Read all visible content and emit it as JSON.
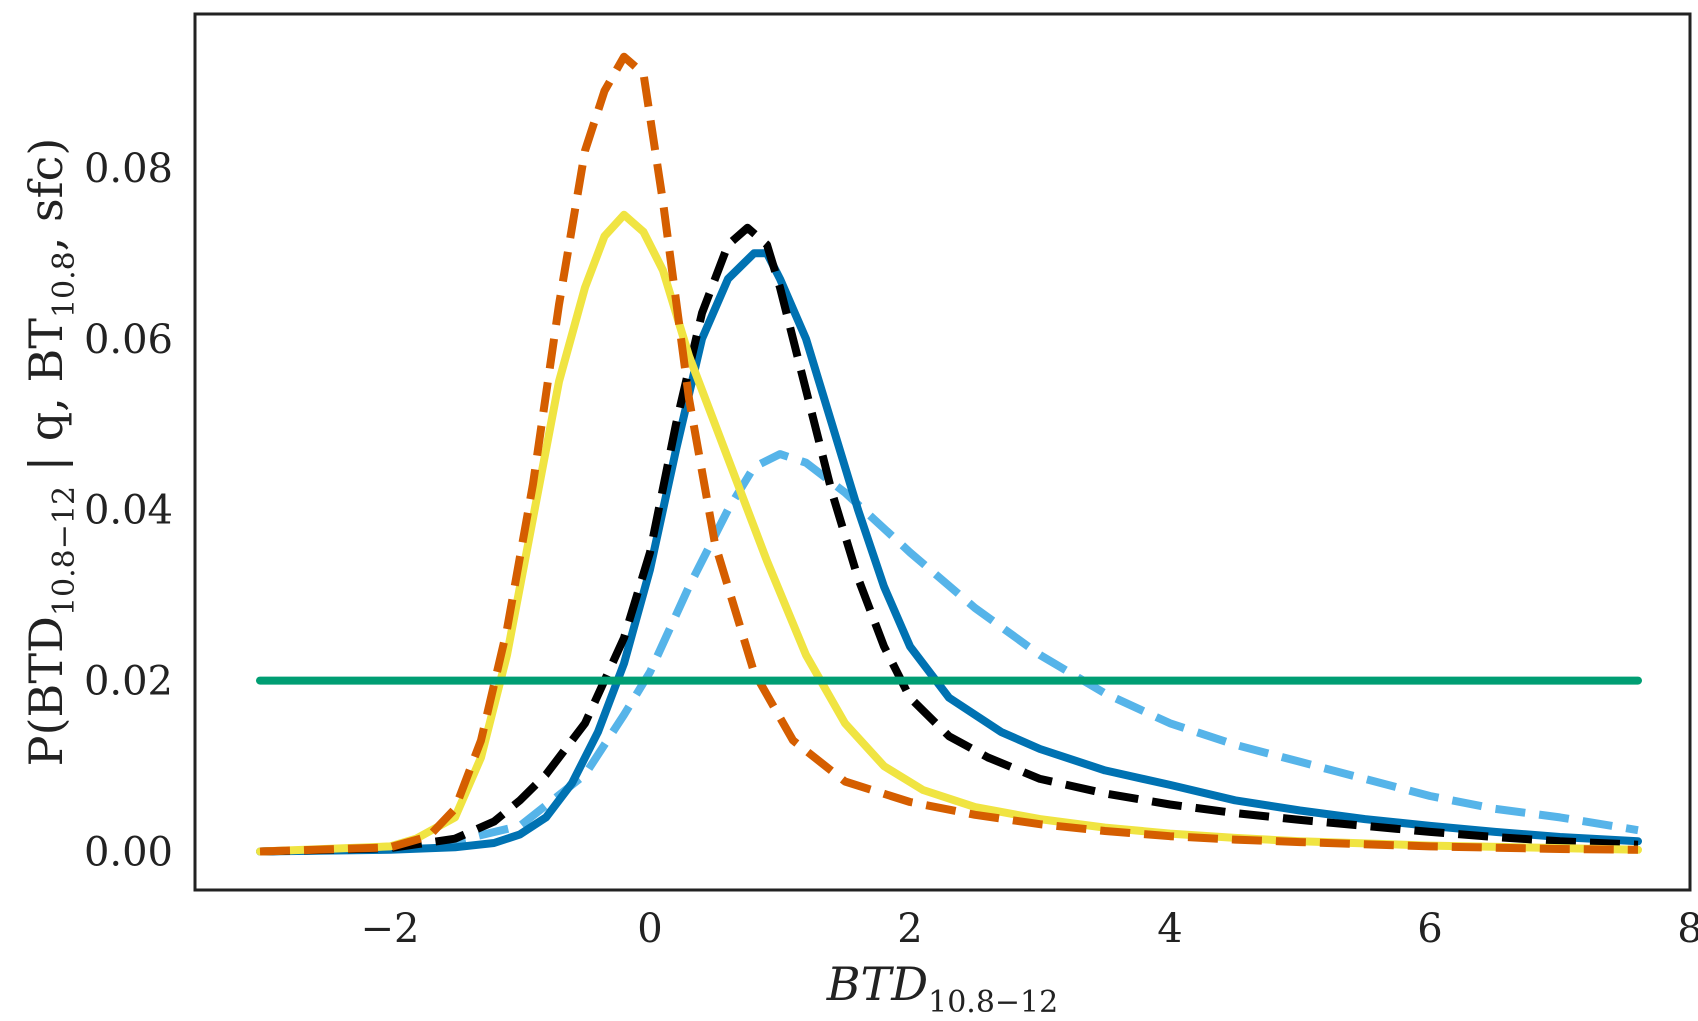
{
  "chart_data": {
    "type": "line",
    "title": "",
    "xlabel": "BTD",
    "xlabel_sub": "10.8−12",
    "ylabel_parts": [
      {
        "t": "P(BTD",
        "sub": false
      },
      {
        "t": "10.8−12",
        "sub": true
      },
      {
        "t": " | q, BT",
        "sub": false
      },
      {
        "t": "10.8",
        "sub": true
      },
      {
        "t": ", sfc)",
        "sub": false
      }
    ],
    "xlim": [
      -3.5,
      8.0
    ],
    "ylim": [
      -0.0045,
      0.098
    ],
    "xticks": [
      -2,
      0,
      2,
      4,
      6,
      8
    ],
    "xtick_labels": [
      "−2",
      "0",
      "2",
      "4",
      "6",
      "8"
    ],
    "yticks": [
      0.0,
      0.02,
      0.04,
      0.06,
      0.08
    ],
    "ytick_labels": [
      "0.00",
      "0.02",
      "0.04",
      "0.06",
      "0.08"
    ],
    "grid": false,
    "legend": "none",
    "series": [
      {
        "color": "#56B4E9",
        "dash": "dashed",
        "x": [
          -3.0,
          -2.0,
          -1.5,
          -1.0,
          -0.5,
          -0.2,
          0.0,
          0.3,
          0.6,
          0.8,
          1.0,
          1.2,
          1.5,
          2.0,
          2.5,
          3.0,
          3.5,
          4.0,
          4.5,
          5.0,
          5.5,
          6.0,
          6.5,
          7.0,
          7.6
        ],
        "y": [
          0.0,
          0.0005,
          0.0012,
          0.003,
          0.009,
          0.016,
          0.021,
          0.031,
          0.04,
          0.045,
          0.0465,
          0.0455,
          0.042,
          0.035,
          0.0285,
          0.023,
          0.0185,
          0.015,
          0.0125,
          0.0105,
          0.0085,
          0.0065,
          0.005,
          0.004,
          0.0025
        ]
      },
      {
        "color": "#0072B2",
        "dash": "solid",
        "x": [
          -3.0,
          -2.0,
          -1.5,
          -1.2,
          -1.0,
          -0.8,
          -0.6,
          -0.4,
          -0.2,
          0.0,
          0.2,
          0.4,
          0.6,
          0.8,
          0.9,
          1.0,
          1.2,
          1.4,
          1.6,
          1.8,
          2.0,
          2.3,
          2.7,
          3.0,
          3.5,
          4.0,
          4.5,
          5.0,
          5.5,
          6.0,
          6.5,
          7.0,
          7.6
        ],
        "y": [
          0.0,
          0.0002,
          0.0005,
          0.001,
          0.002,
          0.004,
          0.008,
          0.014,
          0.022,
          0.033,
          0.047,
          0.06,
          0.067,
          0.07,
          0.07,
          0.067,
          0.06,
          0.05,
          0.04,
          0.031,
          0.024,
          0.018,
          0.014,
          0.012,
          0.0095,
          0.0078,
          0.006,
          0.0048,
          0.0038,
          0.003,
          0.0023,
          0.0017,
          0.0012
        ]
      },
      {
        "color": "#000000",
        "dash": "dashed",
        "x": [
          -3.0,
          -2.0,
          -1.5,
          -1.2,
          -1.0,
          -0.8,
          -0.5,
          -0.2,
          0.0,
          0.2,
          0.4,
          0.6,
          0.75,
          0.9,
          1.0,
          1.2,
          1.4,
          1.6,
          1.8,
          2.0,
          2.3,
          2.6,
          3.0,
          3.5,
          4.0,
          4.5,
          5.0,
          5.5,
          6.0,
          6.5,
          7.0,
          7.6
        ],
        "y": [
          0.0,
          0.0004,
          0.0015,
          0.0035,
          0.006,
          0.009,
          0.015,
          0.025,
          0.035,
          0.05,
          0.063,
          0.071,
          0.073,
          0.071,
          0.066,
          0.054,
          0.042,
          0.032,
          0.024,
          0.018,
          0.0135,
          0.011,
          0.0085,
          0.0068,
          0.0055,
          0.0045,
          0.0037,
          0.003,
          0.0023,
          0.0017,
          0.0012,
          0.0008
        ]
      },
      {
        "color": "#F0E442",
        "dash": "solid",
        "x": [
          -3.0,
          -2.0,
          -1.8,
          -1.5,
          -1.3,
          -1.1,
          -0.9,
          -0.7,
          -0.5,
          -0.35,
          -0.2,
          -0.05,
          0.1,
          0.3,
          0.6,
          0.9,
          1.2,
          1.5,
          1.8,
          2.1,
          2.5,
          3.0,
          3.5,
          4.0,
          4.5,
          5.0,
          6.0,
          7.0,
          7.6
        ],
        "y": [
          0.0,
          0.0006,
          0.0015,
          0.004,
          0.011,
          0.023,
          0.039,
          0.055,
          0.066,
          0.072,
          0.0745,
          0.0725,
          0.068,
          0.058,
          0.046,
          0.034,
          0.023,
          0.015,
          0.01,
          0.0072,
          0.0052,
          0.0038,
          0.0028,
          0.0021,
          0.0016,
          0.0012,
          0.0007,
          0.0004,
          0.0002
        ]
      },
      {
        "color": "#D55E00",
        "dash": "dashed",
        "x": [
          -3.0,
          -2.0,
          -1.7,
          -1.5,
          -1.3,
          -1.1,
          -0.9,
          -0.7,
          -0.5,
          -0.35,
          -0.2,
          -0.05,
          0.1,
          0.3,
          0.5,
          0.8,
          1.1,
          1.5,
          2.0,
          2.5,
          3.0,
          3.5,
          4.0,
          4.5,
          5.0,
          6.0,
          7.0,
          7.6
        ],
        "y": [
          0.0,
          0.0005,
          0.0018,
          0.005,
          0.013,
          0.026,
          0.043,
          0.064,
          0.082,
          0.089,
          0.093,
          0.091,
          0.076,
          0.053,
          0.036,
          0.021,
          0.013,
          0.0082,
          0.0058,
          0.0043,
          0.0032,
          0.0024,
          0.0018,
          0.0014,
          0.0011,
          0.0006,
          0.0003,
          0.0002
        ]
      },
      {
        "color": "#009E73",
        "dash": "solid",
        "x": [
          -3.0,
          7.6
        ],
        "y": [
          0.02,
          0.02
        ]
      }
    ]
  }
}
